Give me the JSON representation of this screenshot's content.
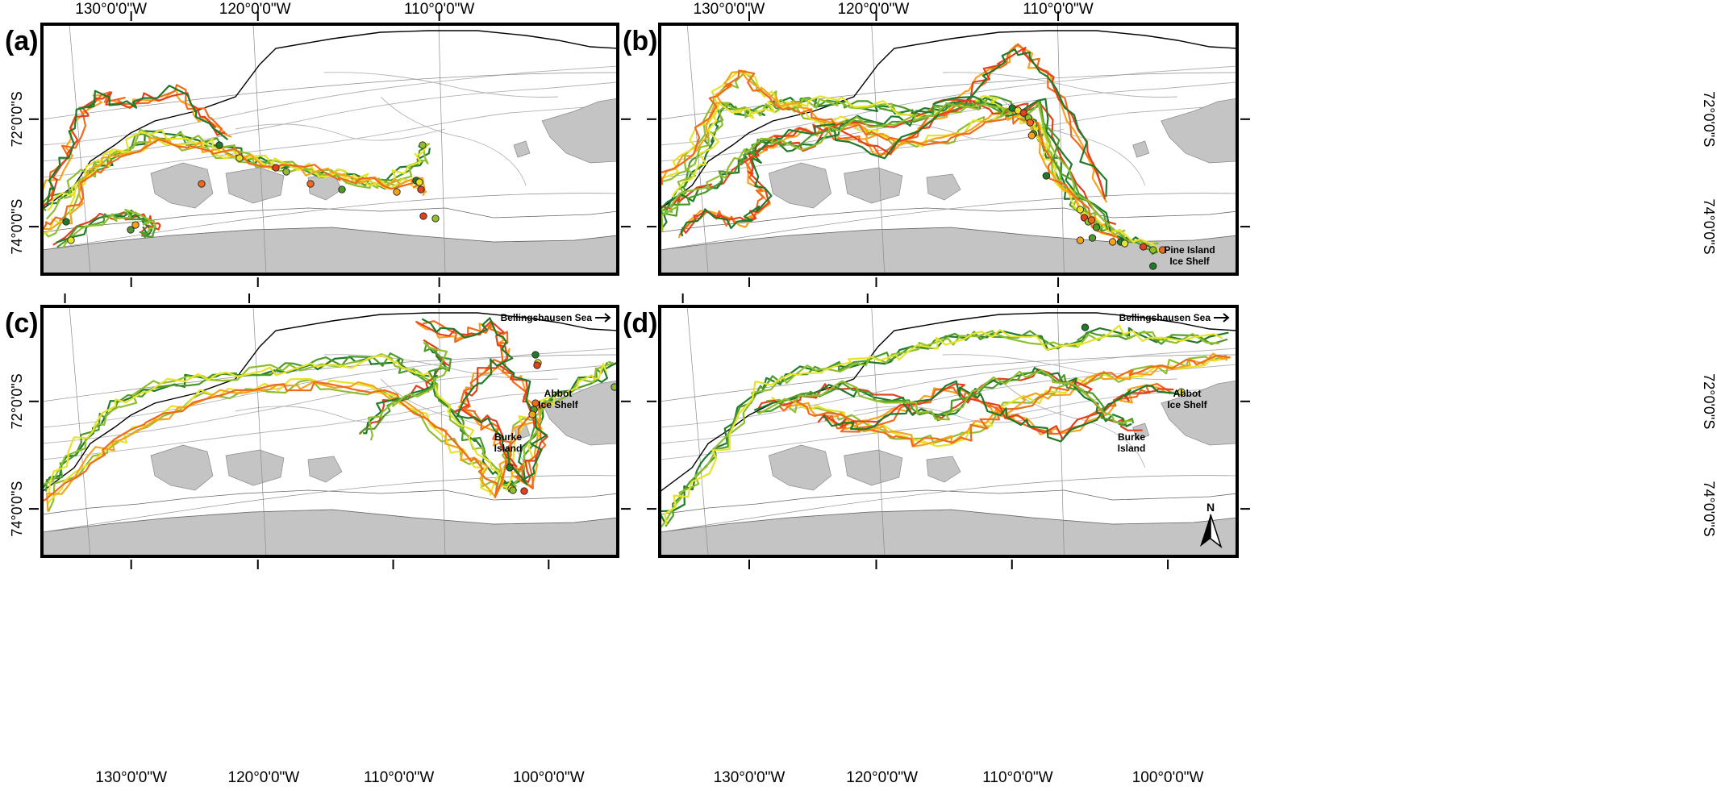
{
  "panels": [
    {
      "id": "a",
      "letter": "(a)",
      "top_labels": [
        "130°0'0\"W",
        "120°0'0\"W",
        "110°0'0\"W"
      ],
      "bottom_labels": [],
      "left_labels": [
        "72°0'0\"S",
        "74°0'0\"S"
      ],
      "right_labels": [],
      "place_labels": [],
      "has_arrow": false
    },
    {
      "id": "b",
      "letter": "(b)",
      "top_labels": [
        "130°0'0\"W",
        "120°0'0\"W",
        "110°0'0\"W"
      ],
      "bottom_labels": [],
      "left_labels": [],
      "right_labels": [
        "72°0'0\"S",
        "74°0'0\"S"
      ],
      "place_labels": [
        "Pine Island",
        "Ice Shelf"
      ],
      "has_arrow": false
    },
    {
      "id": "c",
      "letter": "(c)",
      "top_labels": [],
      "bottom_labels": [
        "130°0'0\"W",
        "120°0'0\"W",
        "110°0'0\"W",
        "100°0'0\"W"
      ],
      "left_labels": [
        "72°0'0\"S",
        "74°0'0\"S"
      ],
      "right_labels": [],
      "place_labels": [
        "Bellingshausen Sea",
        "Burke",
        "Island",
        "Abbot",
        "Ice Shelf"
      ],
      "has_arrow": false
    },
    {
      "id": "d",
      "letter": "(d)",
      "top_labels": [],
      "bottom_labels": [
        "130°0'0\"W",
        "120°0'0\"W",
        "110°0'0\"W",
        "100°0'0\"W"
      ],
      "left_labels": [],
      "right_labels": [
        "72°0'0\"S",
        "74°0'0\"S"
      ],
      "place_labels": [
        "Bellingshausen Sea",
        "Burke",
        "Island",
        "Abbot",
        "Ice Shelf"
      ],
      "has_arrow": true
    }
  ],
  "north_label": "N",
  "colors": {
    "frame": "#000000",
    "ice_shelf": "#c4c4c4",
    "contour": "#b3b3b3",
    "coast": "#000000",
    "track_palette": [
      "#1f7a2a",
      "#4d9a2a",
      "#8fbe2e",
      "#e7e22a",
      "#f6a21c",
      "#ef6a1c",
      "#e3401f"
    ]
  }
}
